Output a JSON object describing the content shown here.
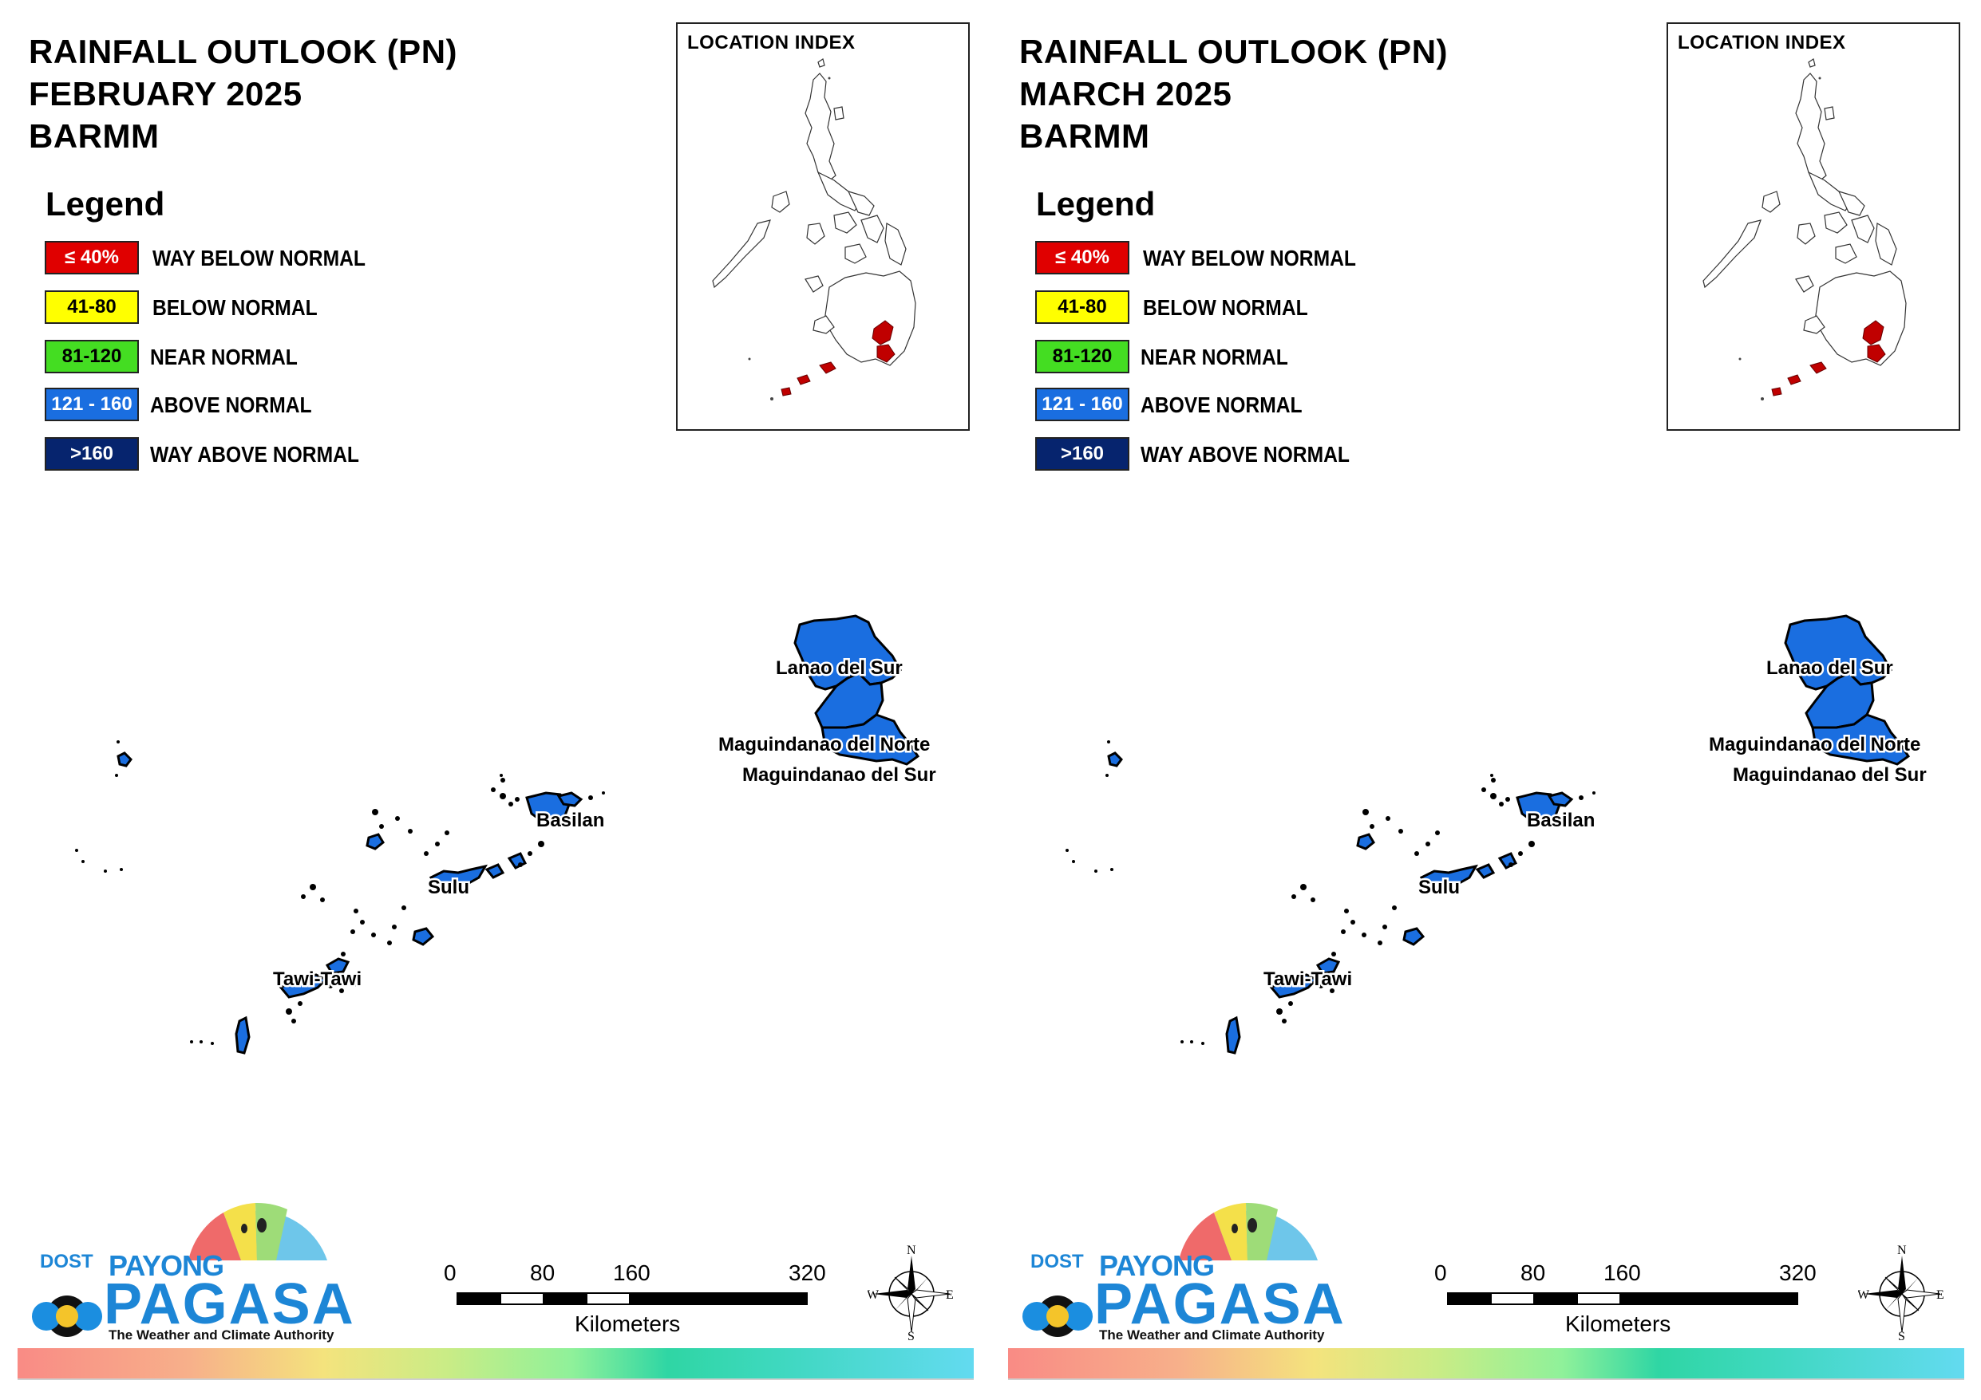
{
  "panels": [
    {
      "title_lines": [
        "RAINFALL OUTLOOK (PN)",
        "FEBRUARY 2025",
        "BARMM"
      ],
      "month": "FEBRUARY 2025"
    },
    {
      "title_lines": [
        "RAINFALL OUTLOOK (PN)",
        "MARCH 2025",
        "BARMM"
      ],
      "month": "MARCH 2025"
    }
  ],
  "legend": {
    "title": "Legend",
    "items": [
      {
        "range": "≤ 40%",
        "label": "WAY BELOW NORMAL",
        "color": "#e00000",
        "text_color": "#ffffff"
      },
      {
        "range": "41-80",
        "label": "BELOW NORMAL",
        "color": "#ffff00",
        "text_color": "#000000"
      },
      {
        "range": "81-120",
        "label": "NEAR NORMAL",
        "color": "#44dd22",
        "text_color": "#000000"
      },
      {
        "range": "121 - 160",
        "label": "ABOVE NORMAL",
        "color": "#1a6ee0",
        "text_color": "#ffffff"
      },
      {
        "range": ">160",
        "label": "WAY ABOVE NORMAL",
        "color": "#06246e",
        "text_color": "#ffffff"
      }
    ]
  },
  "inset": {
    "title": "LOCATION INDEX",
    "highlight_color": "#c00000"
  },
  "regions": [
    {
      "name": "Lanao del Sur",
      "category": "ABOVE NORMAL"
    },
    {
      "name": "Maguindanao del Norte",
      "category": "ABOVE NORMAL"
    },
    {
      "name": "Maguindanao del Sur",
      "category": "ABOVE NORMAL"
    },
    {
      "name": "Basilan",
      "category": "ABOVE NORMAL"
    },
    {
      "name": "Sulu",
      "category": "ABOVE NORMAL"
    },
    {
      "name": "Tawi-Tawi",
      "category": "ABOVE NORMAL"
    }
  ],
  "region_fill_color": "#1a6ee0",
  "scale": {
    "ticks": [
      "0",
      "80",
      "160",
      "320"
    ],
    "unit": "Kilometers"
  },
  "compass": {
    "n": "N",
    "e": "E",
    "s": "S",
    "w": "W"
  },
  "logo": {
    "dost": "DOST",
    "payong": "PAYONG",
    "pagasa": "PAGASA",
    "tagline": "The Weather and Climate Authority"
  }
}
